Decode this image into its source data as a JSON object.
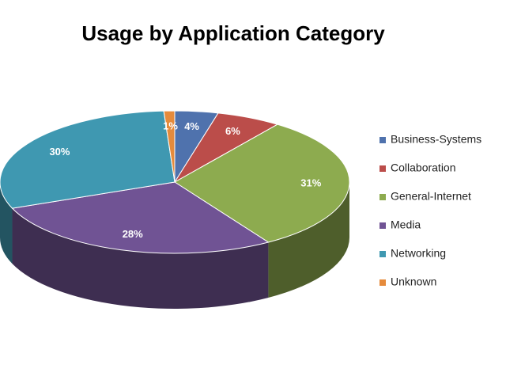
{
  "chart_data": {
    "type": "pie",
    "title": "Usage by Application Category",
    "categories": [
      "Business-Systems",
      "Collaboration",
      "General-Internet",
      "Media",
      "Networking",
      "Unknown"
    ],
    "values": [
      4,
      6,
      31,
      28,
      30,
      1
    ],
    "value_labels": [
      "4%",
      "6%",
      "31%",
      "28%",
      "30%",
      "1%"
    ],
    "colors": [
      "#4f72ad",
      "#bb4d4a",
      "#8dab4f",
      "#705394",
      "#3f98b1",
      "#e58b3c"
    ],
    "legend": "right"
  }
}
